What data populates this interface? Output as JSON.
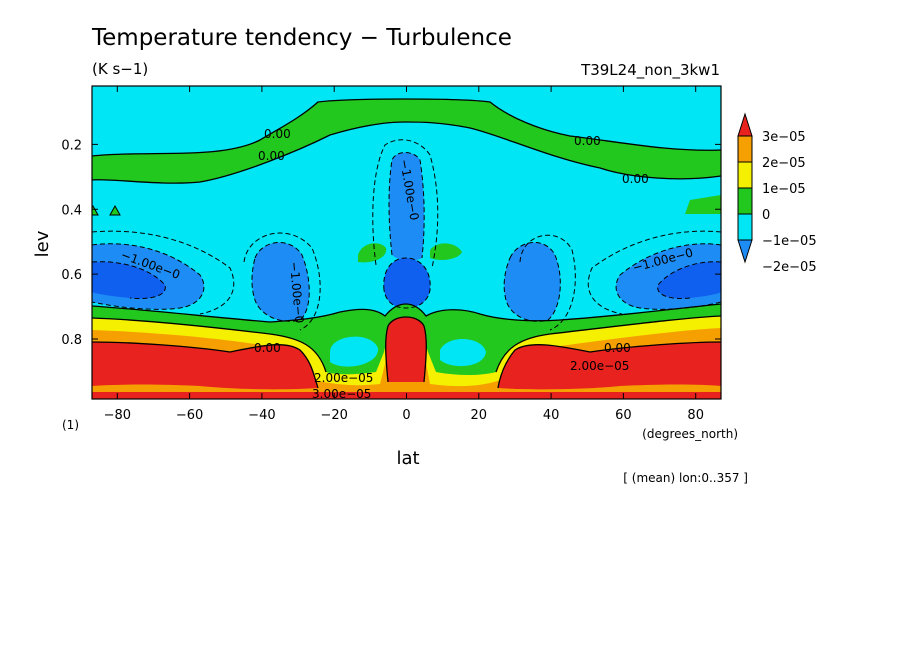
{
  "chart_data": {
    "type": "heatmap",
    "title": "Temperature tendency − Turbulence",
    "units": "(K s−1)",
    "run_label": "T39L24_non_3kw1",
    "xlabel": "lat",
    "x_units": "(degrees_north)",
    "ylabel": "lev",
    "y_units": "(1)",
    "footnote": "[ (mean) lon:0..357 ]",
    "xlim": [
      -87,
      87
    ],
    "ylim": [
      0.985,
      0.02
    ],
    "x_ticks": [
      "−80",
      "−60",
      "−40",
      "−20",
      "0",
      "20",
      "40",
      "60",
      "80"
    ],
    "x_tick_values": [
      -80,
      -60,
      -40,
      -20,
      0,
      20,
      40,
      60,
      80
    ],
    "y_ticks": [
      "0.2",
      "0.4",
      "0.6",
      "0.8"
    ],
    "y_tick_values": [
      0.2,
      0.4,
      0.6,
      0.8
    ],
    "colorbar": {
      "labels": [
        "3e−05",
        "2e−05",
        "1e−05",
        "0",
        "−1e−05",
        "−2e−05"
      ],
      "levels": [
        3e-05,
        2e-05,
        1e-05,
        0,
        -1e-05,
        -2e-05
      ],
      "colors": [
        "#e8221e",
        "#f5a000",
        "#f5f000",
        "#22c81e",
        "#00e6f5",
        "#1e8cf5"
      ]
    },
    "contour_labels": [
      "0.00",
      "0.00",
      "0.00",
      "0.00",
      "−1.00e−0",
      "−1.00e−0",
      "−1.00e−0",
      "−1.00e−0",
      "0.00",
      "0.00",
      "2.00e−05",
      "2.00e−05",
      "3.00e−05"
    ],
    "colors": {
      "red": "#e8221e",
      "orange": "#f5a000",
      "yellow": "#f5f000",
      "green": "#22c81e",
      "cyan": "#00e6f5",
      "blue": "#1e8cf5",
      "darkblue": "#1060f0"
    }
  }
}
